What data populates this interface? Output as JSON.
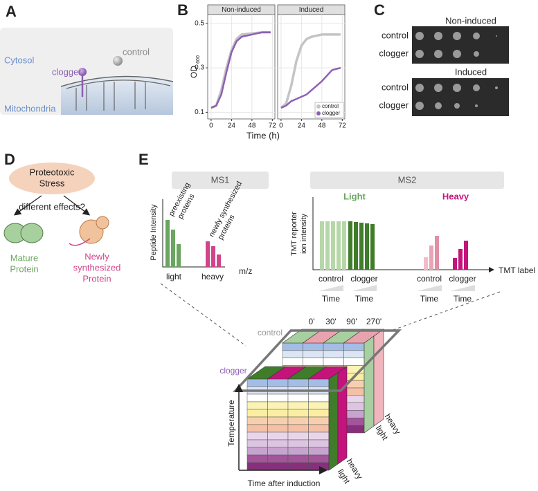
{
  "panel_a": {
    "label": "A",
    "cytosol": "Cytosol",
    "mitochondria": "Mitochondria",
    "control": "control",
    "clogger": "clogger"
  },
  "panel_b": {
    "label": "B",
    "xlabel": "Time (h)",
    "ylabel": "OD",
    "ylabel_sub": "600"
  },
  "chart_data": [
    {
      "type": "line",
      "title": "Non-induced",
      "x": [
        0,
        6,
        12,
        18,
        24,
        30,
        36,
        48,
        60,
        70
      ],
      "series": [
        {
          "name": "control",
          "color": "#c4c4c4",
          "values": [
            0.12,
            0.13,
            0.2,
            0.3,
            0.38,
            0.43,
            0.45,
            0.455,
            0.46,
            0.46
          ]
        },
        {
          "name": "clogger",
          "color": "#8d5fb3",
          "values": [
            0.12,
            0.13,
            0.18,
            0.28,
            0.37,
            0.42,
            0.44,
            0.45,
            0.46,
            0.46
          ]
        }
      ],
      "xlim": [
        -4,
        75
      ],
      "ylim": [
        0.07,
        0.54
      ],
      "xticks": [
        0,
        24,
        48,
        72
      ],
      "yticks": [
        0.1,
        0.3,
        0.5
      ],
      "grid": true
    },
    {
      "type": "line",
      "title": "Induced",
      "x": [
        0,
        6,
        12,
        18,
        24,
        30,
        36,
        48,
        60,
        70
      ],
      "series": [
        {
          "name": "control",
          "color": "#c4c4c4",
          "values": [
            0.12,
            0.14,
            0.22,
            0.33,
            0.4,
            0.43,
            0.44,
            0.45,
            0.45,
            0.45
          ]
        },
        {
          "name": "clogger",
          "color": "#8d5fb3",
          "values": [
            0.12,
            0.13,
            0.15,
            0.16,
            0.17,
            0.18,
            0.2,
            0.24,
            0.29,
            0.3
          ]
        }
      ],
      "xlim": [
        -4,
        75
      ],
      "ylim": [
        0.07,
        0.54
      ],
      "xticks": [
        0,
        24,
        48,
        72
      ],
      "yticks": [
        0.1,
        0.3,
        0.5
      ],
      "grid": true,
      "legend": "bottom-right"
    }
  ],
  "panel_c": {
    "label": "C",
    "top_title": "Non-induced",
    "top_rows": [
      "control",
      "clogger"
    ],
    "bottom_title": "Induced",
    "bottom_rows": [
      "control",
      "clogger"
    ]
  },
  "panel_d": {
    "label": "D",
    "stress": [
      "Proteotoxic",
      "Stress"
    ],
    "question": "different effects?",
    "mature": [
      "Mature",
      "Protein"
    ],
    "new": [
      "Newly",
      "synthesized",
      "Protein"
    ]
  },
  "panel_e": {
    "label": "E",
    "ms1": "MS1",
    "ms2": "MS2",
    "ms1_plot": {
      "ylabel": "Peptide Intensity",
      "pre": [
        "preexisting",
        "proteins"
      ],
      "newsyn": [
        "newly synthesized",
        "proteins"
      ],
      "light": "light",
      "heavy": "heavy",
      "xlabel": "m/z"
    },
    "ms2_plot": {
      "ylabel": [
        "TMT reporter",
        "ion intensity"
      ],
      "light_title": "Light",
      "heavy_title": "Heavy",
      "groups": [
        "control",
        "clogger",
        "control",
        "clogger"
      ],
      "time": [
        "Time",
        "Time",
        "Time",
        "Time"
      ],
      "xlabel": "TMT label"
    },
    "cube": {
      "control": "control",
      "times": [
        "0'",
        "30'",
        "90'",
        "270'"
      ],
      "clogger": "clogger",
      "yaxis": "Temperature",
      "xaxis": "Time after induction",
      "back_heavy": "heavy",
      "back_light": "light",
      "front_heavy": "heavy",
      "front_light": "light"
    }
  }
}
